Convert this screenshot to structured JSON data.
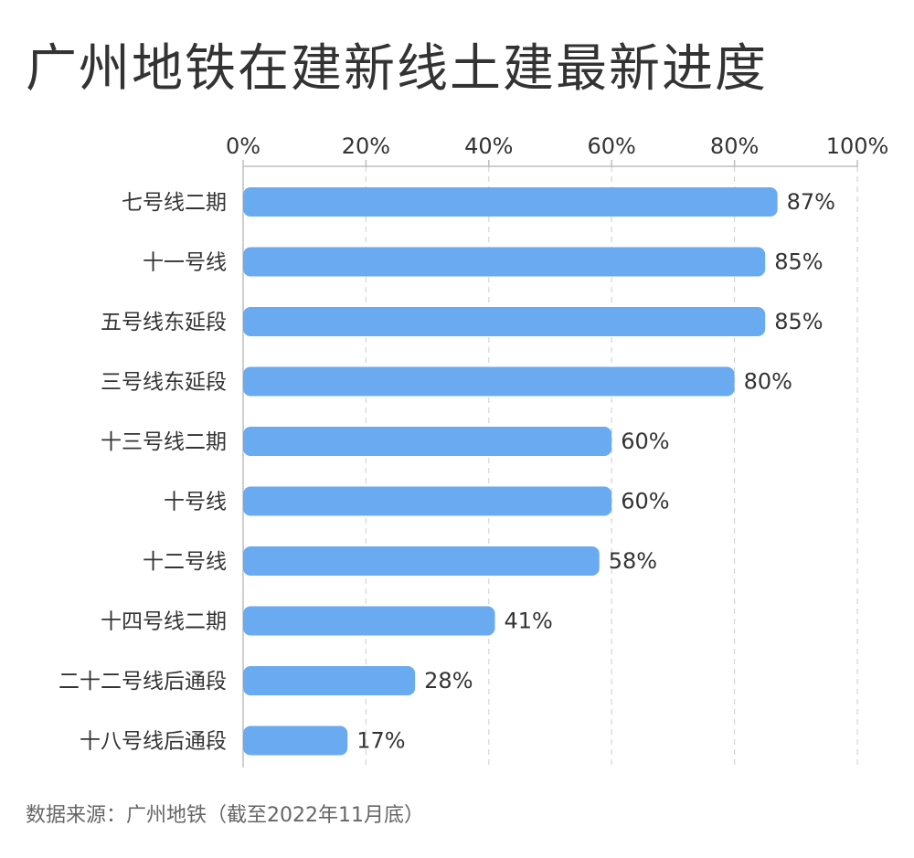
{
  "title": "广州地铁在建新线土建最新进度",
  "source": "数据来源：广州地铁（截至2022年11月底）",
  "colors": {
    "bar": "#6aaaf0",
    "grid": "#d6d6d6",
    "axis": "#bfbfbf",
    "text": "#333333",
    "subtle": "#666666"
  },
  "chart_data": {
    "type": "bar",
    "orientation": "horizontal",
    "x_ticks": [
      "0%",
      "20%",
      "40%",
      "60%",
      "80%",
      "100%"
    ],
    "xlim": [
      0,
      100
    ],
    "grid": "vertical dashed",
    "categories": [
      "七号线二期",
      "十一号线",
      "五号线东延段",
      "三号线东延段",
      "十三号线二期",
      "十号线",
      "十二号线",
      "十四号线二期",
      "二十二号线后通段",
      "十八号线后通段"
    ],
    "values": [
      87,
      85,
      85,
      80,
      60,
      60,
      58,
      41,
      28,
      17
    ],
    "value_labels": [
      "87%",
      "85%",
      "85%",
      "80%",
      "60%",
      "60%",
      "58%",
      "41%",
      "28%",
      "17%"
    ]
  }
}
